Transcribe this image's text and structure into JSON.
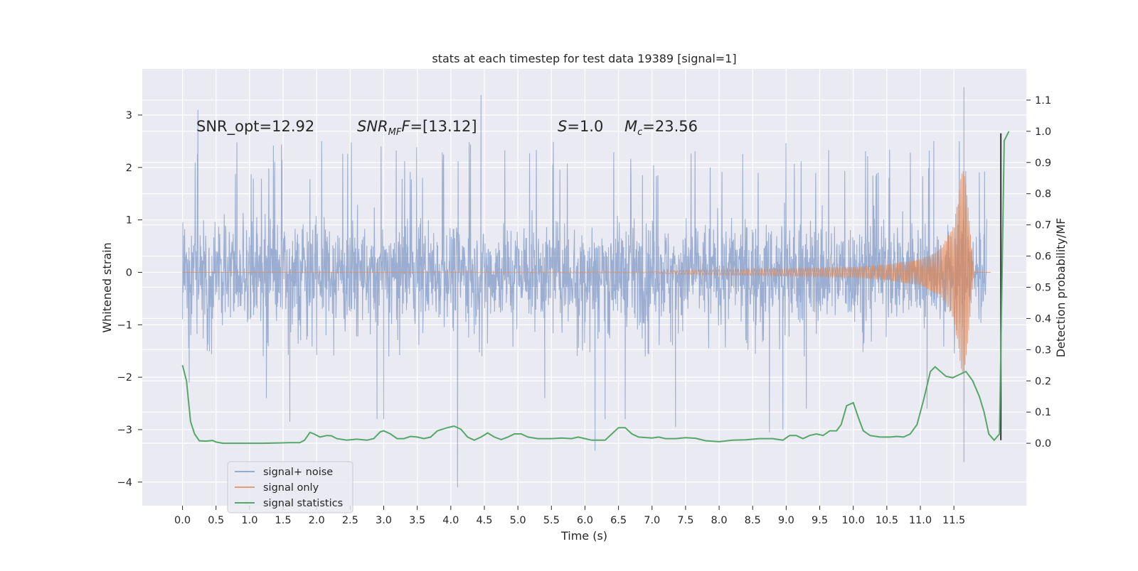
{
  "chart_data": {
    "type": "line",
    "title": "stats at each timestep for test data 19389 [signal=1]",
    "xlabel": "Time (s)",
    "ylabel": "Whitened strain",
    "ylabel_right": "Detection probability/MF",
    "xlim": [
      -0.6,
      12.58
    ],
    "ylim": [
      -4.45,
      3.88
    ],
    "ylim_right": [
      -0.2,
      1.2
    ],
    "x_ticks": [
      "0.0",
      "0.5",
      "1.0",
      "1.5",
      "2.0",
      "2.5",
      "3.0",
      "3.5",
      "4.0",
      "4.5",
      "5.0",
      "5.5",
      "6.0",
      "6.5",
      "7.0",
      "7.5",
      "8.0",
      "8.5",
      "9.0",
      "9.5",
      "10.0",
      "10.5",
      "11.0",
      "11.5"
    ],
    "y_ticks": [
      "3",
      "2",
      "1",
      "0",
      "−1",
      "−2",
      "−3",
      "−4"
    ],
    "y_ticks_right": [
      "1.1",
      "1.0",
      "0.9",
      "0.8",
      "0.7",
      "0.6",
      "0.5",
      "0.4",
      "0.3",
      "0.2",
      "0.1",
      "0.0"
    ],
    "grid": true,
    "legend_position": "lower-left",
    "colors": {
      "background": "#eaeaf2",
      "grid": "#ffffff",
      "signal_noise": "#4c72b0",
      "signal_only": "#dd8452",
      "statistics": "#55a868",
      "marker": "#333333"
    },
    "annotations": {
      "snr_opt": "SNR_opt=12.92",
      "snr_mf_main": "SNR",
      "snr_mf_sub": "MF",
      "snr_mf_value": "=[13.12]",
      "s_symbol": "S",
      "s_value": "=1.0",
      "mc_symbol": "M",
      "mc_sub": "c",
      "mc_value": "=23.56"
    },
    "series": [
      {
        "name": "signal+ noise",
        "axis": "left",
        "x_range": [
          0.0,
          11.99
        ],
        "typical_envelope": [
          -1.4,
          2.2
        ],
        "spikes": [
          {
            "x": 0.23,
            "y": 3.1
          },
          {
            "x": 0.1,
            "y": -2.1
          },
          {
            "x": 1.25,
            "y": -2.4
          },
          {
            "x": 1.6,
            "y": -2.85
          },
          {
            "x": 2.9,
            "y": -2.8
          },
          {
            "x": 3.0,
            "y": -2.8
          },
          {
            "x": 4.1,
            "y": -4.1
          },
          {
            "x": 4.45,
            "y": 3.38
          },
          {
            "x": 5.4,
            "y": -2.4
          },
          {
            "x": 6.15,
            "y": -3.4
          },
          {
            "x": 6.3,
            "y": -2.8
          },
          {
            "x": 6.6,
            "y": -2.8
          },
          {
            "x": 7.35,
            "y": -2.95
          },
          {
            "x": 8.75,
            "y": -3.05
          },
          {
            "x": 8.95,
            "y": -3.0
          },
          {
            "x": 9.3,
            "y": -2.6
          },
          {
            "x": 11.65,
            "y": 3.53
          },
          {
            "x": 11.65,
            "y": -3.62
          },
          {
            "x": 11.1,
            "y": -2.6
          },
          {
            "x": 11.2,
            "y": 2.5
          }
        ]
      },
      {
        "name": "signal only",
        "axis": "left",
        "description_points": [
          {
            "t": 0.0,
            "amp": 0.0
          },
          {
            "t": 7.0,
            "amp": 0.01
          },
          {
            "t": 7.5,
            "amp": 0.04
          },
          {
            "t": 9.0,
            "amp": 0.07
          },
          {
            "t": 10.0,
            "amp": 0.1
          },
          {
            "t": 10.5,
            "amp": 0.15
          },
          {
            "t": 11.0,
            "amp": 0.25
          },
          {
            "t": 11.3,
            "amp": 0.45
          },
          {
            "t": 11.5,
            "amp": 0.9
          },
          {
            "t": 11.65,
            "amp": 2.2
          },
          {
            "t": 11.8,
            "amp": 0.0
          }
        ]
      },
      {
        "name": "signal statistics",
        "axis": "right",
        "points": [
          [
            0.0,
            0.25
          ],
          [
            0.06,
            0.2
          ],
          [
            0.12,
            0.07
          ],
          [
            0.18,
            0.03
          ],
          [
            0.25,
            0.008
          ],
          [
            0.35,
            0.007
          ],
          [
            0.45,
            0.009
          ],
          [
            0.5,
            0.004
          ],
          [
            0.6,
            0.0
          ],
          [
            0.8,
            0.0
          ],
          [
            1.0,
            0.0
          ],
          [
            1.2,
            0.0
          ],
          [
            1.4,
            0.001
          ],
          [
            1.6,
            0.002
          ],
          [
            1.75,
            0.002
          ],
          [
            1.82,
            0.01
          ],
          [
            1.9,
            0.035
          ],
          [
            1.96,
            0.03
          ],
          [
            2.05,
            0.02
          ],
          [
            2.15,
            0.025
          ],
          [
            2.22,
            0.024
          ],
          [
            2.3,
            0.015
          ],
          [
            2.45,
            0.01
          ],
          [
            2.6,
            0.013
          ],
          [
            2.75,
            0.01
          ],
          [
            2.85,
            0.015
          ],
          [
            2.95,
            0.037
          ],
          [
            3.0,
            0.04
          ],
          [
            3.1,
            0.03
          ],
          [
            3.2,
            0.015
          ],
          [
            3.3,
            0.015
          ],
          [
            3.4,
            0.022
          ],
          [
            3.5,
            0.02
          ],
          [
            3.6,
            0.015
          ],
          [
            3.7,
            0.02
          ],
          [
            3.8,
            0.04
          ],
          [
            3.95,
            0.05
          ],
          [
            4.05,
            0.055
          ],
          [
            4.15,
            0.045
          ],
          [
            4.25,
            0.02
          ],
          [
            4.35,
            0.01
          ],
          [
            4.45,
            0.02
          ],
          [
            4.55,
            0.033
          ],
          [
            4.65,
            0.02
          ],
          [
            4.75,
            0.012
          ],
          [
            4.85,
            0.02
          ],
          [
            4.95,
            0.03
          ],
          [
            5.05,
            0.03
          ],
          [
            5.15,
            0.02
          ],
          [
            5.3,
            0.015
          ],
          [
            5.5,
            0.015
          ],
          [
            5.65,
            0.017
          ],
          [
            5.8,
            0.015
          ],
          [
            5.9,
            0.02
          ],
          [
            6.0,
            0.015
          ],
          [
            6.1,
            0.01
          ],
          [
            6.2,
            0.01
          ],
          [
            6.3,
            0.01
          ],
          [
            6.4,
            0.03
          ],
          [
            6.5,
            0.05
          ],
          [
            6.6,
            0.05
          ],
          [
            6.7,
            0.03
          ],
          [
            6.8,
            0.02
          ],
          [
            7.0,
            0.017
          ],
          [
            7.1,
            0.02
          ],
          [
            7.2,
            0.015
          ],
          [
            7.35,
            0.015
          ],
          [
            7.5,
            0.018
          ],
          [
            7.65,
            0.016
          ],
          [
            7.8,
            0.008
          ],
          [
            8.0,
            0.005
          ],
          [
            8.2,
            0.01
          ],
          [
            8.4,
            0.011
          ],
          [
            8.6,
            0.015
          ],
          [
            8.8,
            0.015
          ],
          [
            8.95,
            0.01
          ],
          [
            9.05,
            0.025
          ],
          [
            9.15,
            0.025
          ],
          [
            9.25,
            0.015
          ],
          [
            9.35,
            0.025
          ],
          [
            9.45,
            0.03
          ],
          [
            9.55,
            0.025
          ],
          [
            9.65,
            0.04
          ],
          [
            9.75,
            0.04
          ],
          [
            9.82,
            0.06
          ],
          [
            9.9,
            0.12
          ],
          [
            10.0,
            0.13
          ],
          [
            10.08,
            0.08
          ],
          [
            10.15,
            0.04
          ],
          [
            10.25,
            0.025
          ],
          [
            10.4,
            0.02
          ],
          [
            10.55,
            0.02
          ],
          [
            10.65,
            0.022
          ],
          [
            10.75,
            0.02
          ],
          [
            10.85,
            0.03
          ],
          [
            10.95,
            0.06
          ],
          [
            11.05,
            0.14
          ],
          [
            11.15,
            0.23
          ],
          [
            11.22,
            0.245
          ],
          [
            11.3,
            0.23
          ],
          [
            11.38,
            0.215
          ],
          [
            11.48,
            0.21
          ],
          [
            11.58,
            0.22
          ],
          [
            11.68,
            0.23
          ],
          [
            11.78,
            0.2
          ],
          [
            11.88,
            0.15
          ],
          [
            11.95,
            0.1
          ],
          [
            12.02,
            0.03
          ],
          [
            12.1,
            0.01
          ],
          [
            12.18,
            0.03
          ],
          [
            12.25,
            0.97
          ],
          [
            12.32,
            1.0
          ]
        ]
      }
    ],
    "marker_line": {
      "x": 12.2,
      "y_from": -3.2,
      "y_to": 2.65
    }
  }
}
